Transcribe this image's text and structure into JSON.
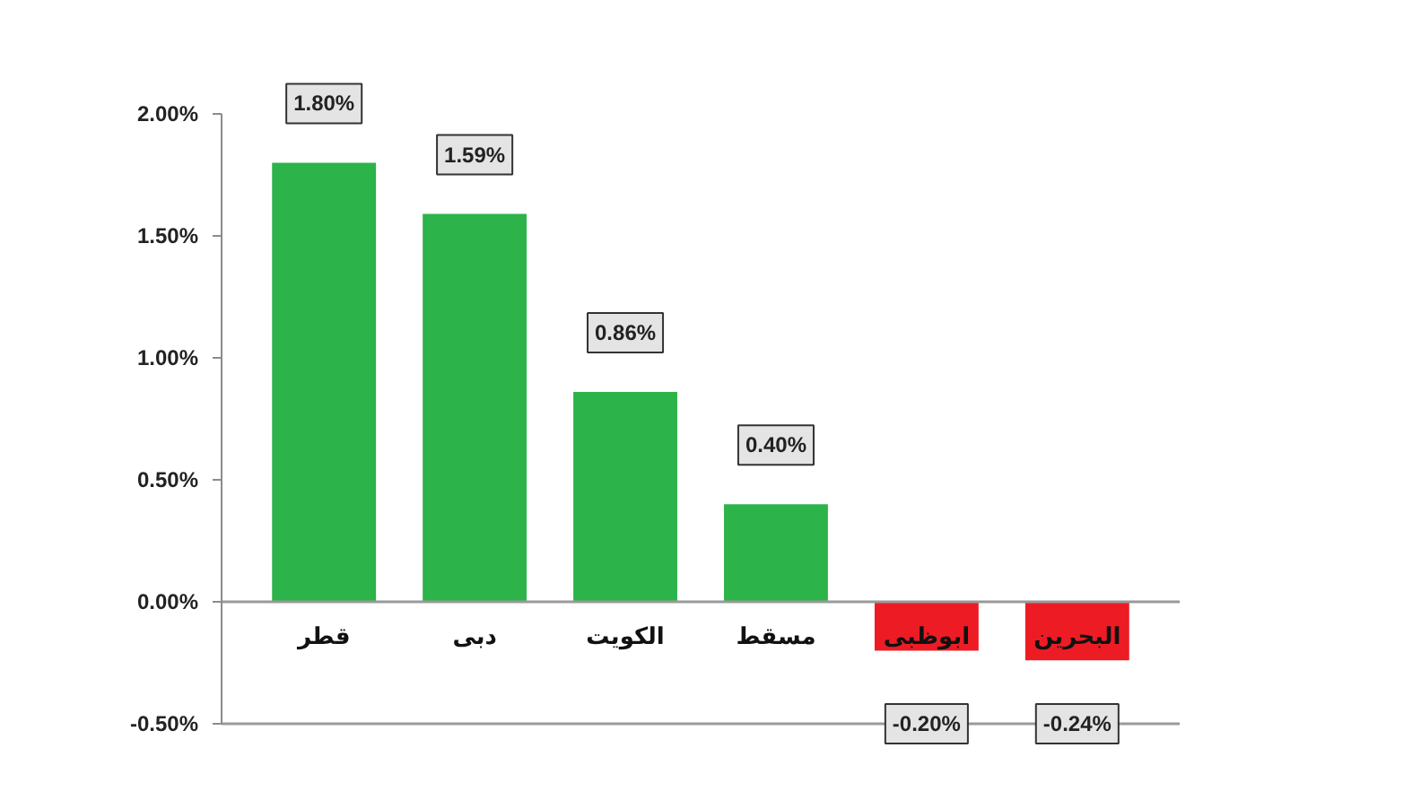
{
  "chart_data": {
    "type": "bar",
    "categories": [
      "قطر",
      "دبى",
      "الكويت",
      "مسقط",
      "ابوظبى",
      "البحرين"
    ],
    "values": [
      1.8,
      1.59,
      0.86,
      0.4,
      -0.2,
      -0.24
    ],
    "colors": [
      "#2cb34a",
      "#2cb34a",
      "#2cb34a",
      "#2cb34a",
      "#ed1c24",
      "#ed1c24"
    ],
    "value_labels": [
      "1.80%",
      "1.59%",
      "0.86%",
      "0.40%",
      "-0.20%",
      "-0.24%"
    ],
    "ylim": [
      -0.5,
      2.0
    ],
    "yticks": [
      {
        "value": -0.5,
        "label": "-0.50%"
      },
      {
        "value": 0,
        "label": "0.00%"
      },
      {
        "value": 0.5,
        "label": "0.50%"
      },
      {
        "value": 1.0,
        "label": "1.00%"
      },
      {
        "value": 1.5,
        "label": "1.50%"
      },
      {
        "value": 2.0,
        "label": "2.00%"
      }
    ],
    "grid": false,
    "ref_lines": [
      {
        "axis": "y",
        "value": -0.5,
        "color": "#9a9a9a"
      }
    ]
  }
}
